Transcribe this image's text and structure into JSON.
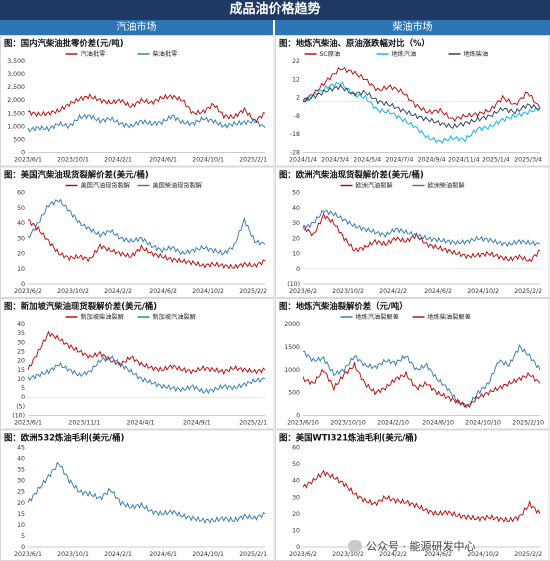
{
  "page": {
    "title": "成品油价格趋势",
    "left_section": "汽油市场",
    "right_section": "柴油市场",
    "watermark": "公众号 · 能源研发中心"
  },
  "colors": {
    "red": "#c00000",
    "blue": "#2e75b6",
    "cyan": "#00b0f0",
    "navy": "#1f3864"
  },
  "chart_data": [
    {
      "type": "line",
      "title": "图：国内汽柴油批零价差(元/吨)",
      "yticks": [
        "3,500",
        "3,000",
        "2,500",
        "2,000",
        "1,500",
        "1,000",
        "500",
        "0"
      ],
      "ylim": [
        0,
        3500
      ],
      "xticks": [
        "2023/6/1",
        "2023/10/1",
        "2024/2/1",
        "2024/6/1",
        "2024/10/1",
        "2025/2/1"
      ],
      "legend_position": "top-center",
      "series": [
        {
          "name": "汽油批零",
          "color": "#c00000",
          "values": [
            1550,
            1450,
            1500,
            1600,
            1850,
            2050,
            2150,
            2000,
            1900,
            2000,
            1750,
            2000,
            1900,
            2100,
            2150,
            2000,
            1500,
            1550,
            1850,
            1400,
            1350,
            1650,
            1200,
            1500
          ]
        },
        {
          "name": "柴油批零",
          "color": "#2e75b6",
          "values": [
            850,
            950,
            900,
            1100,
            1000,
            1350,
            1400,
            1200,
            1300,
            1100,
            1000,
            1200,
            1100,
            1150,
            1400,
            1150,
            1100,
            1300,
            1200,
            1000,
            1100,
            1150,
            1200,
            950
          ]
        }
      ]
    },
    {
      "type": "line",
      "title": "图：地炼汽柴油、原油涨跌幅对比（%）",
      "yticks": [
        "22",
        "12",
        "2",
        "-8",
        "-18",
        "-28"
      ],
      "ylim": [
        -28,
        22
      ],
      "xticks": [
        "2024/1/4",
        "2024/3/4",
        "2024/5/4",
        "2024/7/4",
        "2024/9/4",
        "2024/11/4",
        "2025/1/4",
        "2025/3/4"
      ],
      "legend_position": "top-center",
      "series": [
        {
          "name": "SC原油",
          "color": "#c00000",
          "values": [
            0,
            5,
            12,
            18,
            16,
            12,
            6,
            8,
            5,
            -2,
            -6,
            -5,
            -10,
            -8,
            -7,
            -5,
            2,
            -2,
            5,
            -4
          ]
        },
        {
          "name": "地炼汽油",
          "color": "#00b0f0",
          "values": [
            0,
            4,
            8,
            10,
            4,
            2,
            -5,
            -6,
            -10,
            -14,
            -20,
            -22,
            -20,
            -21,
            -15,
            -14,
            -10,
            -8,
            -6,
            -4
          ]
        },
        {
          "name": "地炼柴油",
          "color": "#1f3864",
          "values": [
            0,
            3,
            6,
            8,
            4,
            5,
            0,
            -2,
            -5,
            -8,
            -10,
            -12,
            -14,
            -12,
            -10,
            -8,
            -4,
            -6,
            -2,
            -4
          ]
        }
      ]
    },
    {
      "type": "line",
      "title": "图：美国汽柴油现货裂解价差(美元/桶)",
      "yticks": [
        "60",
        "50",
        "40",
        "30",
        "20",
        "10",
        "0"
      ],
      "ylim": [
        0,
        60
      ],
      "xticks": [
        "2023/6/2",
        "2023/10/2",
        "2024/2/2",
        "2024/6/2",
        "2024/10/2",
        "2025/2/2"
      ],
      "legend_position": "top-center",
      "series": [
        {
          "name": "美国汽油现货裂解",
          "color": "#c00000",
          "values": [
            42,
            36,
            28,
            20,
            17,
            18,
            16,
            25,
            22,
            20,
            18,
            24,
            20,
            18,
            16,
            15,
            14,
            12,
            13,
            12,
            11,
            13,
            12,
            15
          ]
        },
        {
          "name": "美国柴油现货裂解",
          "color": "#2e75b6",
          "values": [
            30,
            40,
            52,
            55,
            48,
            40,
            36,
            32,
            35,
            30,
            28,
            30,
            25,
            22,
            24,
            20,
            22,
            24,
            22,
            20,
            25,
            42,
            28,
            26
          ]
        }
      ]
    },
    {
      "type": "line",
      "title": "图：欧洲汽柴油现货裂解价差(美元/桶)",
      "yticks": [
        "50",
        "40",
        "30",
        "20",
        "10",
        "0",
        "(10)"
      ],
      "ylim": [
        -10,
        50
      ],
      "xticks": [
        "2023/6/2",
        "2023/10/2",
        "2024/2/2",
        "2024/6/2",
        "2024/10/2",
        "2025/2/2"
      ],
      "legend_position": "top-center",
      "series": [
        {
          "name": "欧洲汽油裂解",
          "color": "#c00000",
          "values": [
            28,
            22,
            35,
            30,
            20,
            12,
            14,
            18,
            16,
            20,
            18,
            22,
            16,
            14,
            12,
            10,
            8,
            9,
            10,
            8,
            6,
            8,
            5,
            12
          ]
        },
        {
          "name": "欧洲柴油裂解",
          "color": "#2e75b6",
          "values": [
            26,
            30,
            38,
            36,
            32,
            28,
            26,
            24,
            22,
            26,
            24,
            22,
            20,
            19,
            18,
            17,
            18,
            20,
            19,
            17,
            16,
            18,
            17,
            16
          ]
        }
      ]
    },
    {
      "type": "line",
      "title": "图：新加坡汽柴油现货裂解价差(美元/桶)",
      "yticks": [
        "40",
        "35",
        "30",
        "25",
        "20",
        "15",
        "10",
        "5",
        "0",
        "(5)",
        "(10)"
      ],
      "ylim": [
        -10,
        40
      ],
      "xticks": [
        "2023/6/1",
        "2023/11/1",
        "2024/4/1",
        "2024/9/1",
        "2025/2/1"
      ],
      "legend_position": "top-center",
      "series": [
        {
          "name": "新加坡柴油裂解",
          "color": "#c00000",
          "values": [
            15,
            25,
            35,
            32,
            28,
            25,
            22,
            24,
            20,
            18,
            22,
            18,
            16,
            15,
            17,
            15,
            14,
            16,
            15,
            14,
            16,
            15,
            14,
            15
          ]
        },
        {
          "name": "新加坡汽油裂解",
          "color": "#2e75b6",
          "values": [
            10,
            12,
            14,
            18,
            15,
            12,
            14,
            20,
            22,
            18,
            14,
            10,
            8,
            6,
            5,
            4,
            6,
            3,
            4,
            6,
            5,
            7,
            9,
            10
          ]
        }
      ]
    },
    {
      "type": "line",
      "title": "图：地炼汽柴油裂解价差（元/吨）",
      "yticks": [
        "2000",
        "1500",
        "1000",
        "500",
        "0"
      ],
      "ylim": [
        0,
        2000
      ],
      "xticks": [
        "2023/6/10",
        "2023/10/10",
        "2024/2/10",
        "2024/6/10",
        "2024/10/10",
        "2025/2/10"
      ],
      "legend_position": "top-center",
      "series": [
        {
          "name": "地炼汽油裂解差",
          "color": "#2e75b6",
          "values": [
            1400,
            1200,
            1250,
            900,
            1000,
            1300,
            1100,
            1050,
            1200,
            1150,
            1300,
            1000,
            1100,
            800,
            600,
            300,
            200,
            500,
            700,
            1200,
            1100,
            1500,
            1300,
            1000
          ]
        },
        {
          "name": "地炼柴油裂解差",
          "color": "#c00000",
          "values": [
            800,
            700,
            1000,
            600,
            900,
            1100,
            700,
            500,
            600,
            800,
            900,
            600,
            700,
            500,
            400,
            300,
            200,
            400,
            500,
            600,
            700,
            800,
            900,
            700
          ]
        }
      ]
    },
    {
      "type": "line",
      "title": "图：欧洲532炼油毛利(美元/桶)",
      "yticks": [
        "45",
        "40",
        "35",
        "30",
        "25",
        "20",
        "15",
        "10",
        "5",
        "0"
      ],
      "ylim": [
        0,
        45
      ],
      "xticks": [
        "2023/6/1",
        "2023/10/1",
        "2024/2/1",
        "2024/6/1",
        "2024/10/1",
        "2025/2/1"
      ],
      "series": [
        {
          "name": "",
          "color": "#2e75b6",
          "values": [
            20,
            26,
            32,
            38,
            30,
            25,
            24,
            22,
            26,
            20,
            18,
            19,
            16,
            15,
            16,
            14,
            13,
            12,
            12,
            13,
            12,
            14,
            13,
            15
          ]
        }
      ]
    },
    {
      "type": "line",
      "title": "图：美国WTI321炼油毛利(美元/桶)",
      "yticks": [
        "60",
        "50",
        "40",
        "30",
        "20",
        "10",
        "0"
      ],
      "ylim": [
        0,
        60
      ],
      "xticks": [
        "2023/6/2",
        "2023/10/2",
        "2024/2/2",
        "2024/6/2",
        "2024/10/2",
        "2025/2/2"
      ],
      "series": [
        {
          "name": "",
          "color": "#c00000",
          "values": [
            36,
            40,
            45,
            42,
            38,
            32,
            28,
            26,
            30,
            28,
            27,
            25,
            22,
            20,
            21,
            19,
            18,
            17,
            18,
            17,
            16,
            18,
            26,
            20
          ]
        }
      ]
    }
  ]
}
